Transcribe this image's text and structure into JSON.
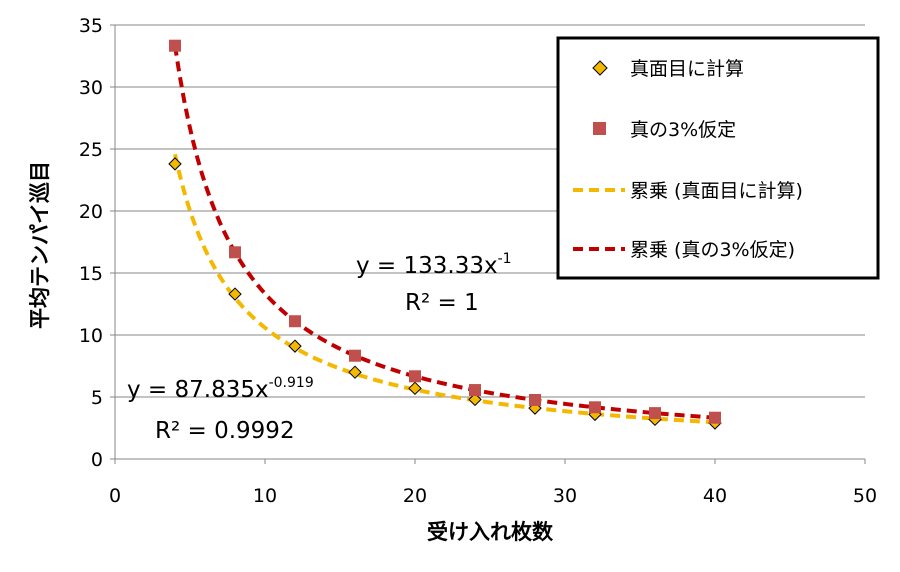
{
  "chart_data": {
    "type": "scatter",
    "xlabel": "受け入れ枚数",
    "ylabel": "平均テンパイ巡目",
    "xlim": [
      0,
      50
    ],
    "ylim": [
      0,
      35
    ],
    "x_ticks": [
      "0",
      "10",
      "20",
      "30",
      "40",
      "50"
    ],
    "y_ticks": [
      "0",
      "5",
      "10",
      "15",
      "20",
      "25",
      "30",
      "35"
    ],
    "grid": "horizontal",
    "legend_position": "top-right",
    "series": [
      {
        "name": "真面目に計算",
        "marker": "diamond",
        "color": "#f5b800",
        "points": [
          [
            4,
            23.8
          ],
          [
            8,
            13.3
          ],
          [
            12,
            9.1
          ],
          [
            16,
            7.0
          ],
          [
            20,
            5.7
          ],
          [
            24,
            4.8
          ],
          [
            28,
            4.1
          ],
          [
            32,
            3.6
          ],
          [
            36,
            3.2
          ],
          [
            40,
            2.9
          ]
        ]
      },
      {
        "name": "真の3%仮定",
        "marker": "square",
        "color": "#c0504d",
        "points": [
          [
            4,
            33.33
          ],
          [
            8,
            16.67
          ],
          [
            12,
            11.11
          ],
          [
            16,
            8.33
          ],
          [
            20,
            6.67
          ],
          [
            24,
            5.56
          ],
          [
            28,
            4.76
          ],
          [
            32,
            4.17
          ],
          [
            36,
            3.7
          ],
          [
            40,
            3.33
          ]
        ]
      }
    ],
    "trendlines": [
      {
        "name": "累乗 (真面目に計算)",
        "type": "power",
        "coef": 87.835,
        "exponent": -0.919,
        "color": "#f5b800",
        "x_range": [
          4,
          40
        ],
        "equation_base": "y = 87.835x",
        "equation_exp": "-0.919",
        "r2_text": "R² = 0.9992"
      },
      {
        "name": "累乗 (真の3%仮定)",
        "type": "power",
        "coef": 133.33,
        "exponent": -1,
        "color": "#c00000",
        "x_range": [
          4,
          40
        ],
        "equation_base": "y = 133.33x",
        "equation_exp": "-1",
        "r2_text": "R² = 1"
      }
    ]
  }
}
